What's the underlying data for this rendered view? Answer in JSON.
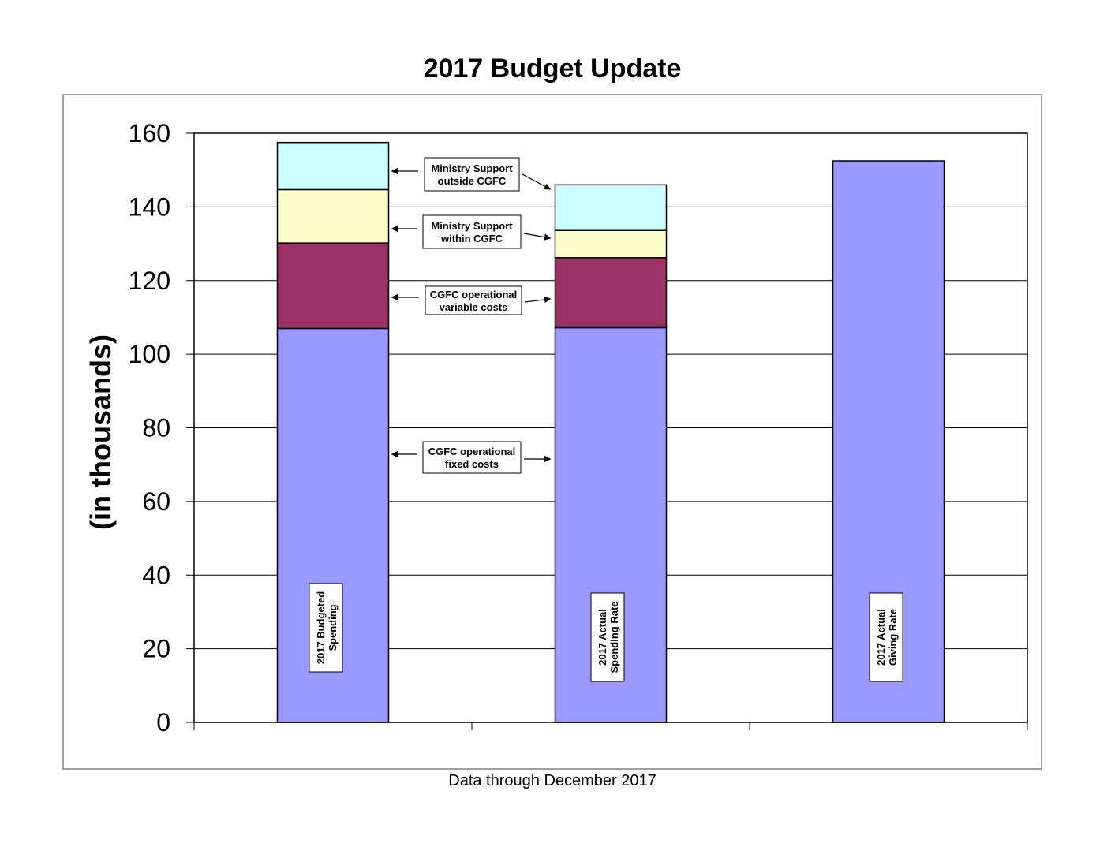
{
  "chart_data": {
    "type": "bar",
    "stacked": true,
    "title": "2017 Budget Update",
    "ylabel": "(in thousands)",
    "footer": "Data through December 2017",
    "ylim": [
      0,
      160
    ],
    "yticks": [
      0,
      20,
      40,
      60,
      80,
      100,
      120,
      140,
      160
    ],
    "grid": true,
    "categories": [
      [
        "2017  Budgeted",
        "Spending"
      ],
      [
        "2017 Actual",
        "Spending Rate"
      ],
      [
        "2017 Actual",
        "Giving Rate"
      ]
    ],
    "series": [
      {
        "name": "CGFC operational fixed costs",
        "color": "#9999ff",
        "values": [
          107,
          107.2,
          152.5
        ]
      },
      {
        "name": "CGFC operational variable costs",
        "color": "#993366",
        "values": [
          23.2,
          19,
          0
        ]
      },
      {
        "name": "Ministry Support within  CGFC",
        "color": "#ffffcc",
        "values": [
          14.5,
          7.4,
          0
        ]
      },
      {
        "name": "Ministry Support outside CGFC",
        "color": "#ccffff",
        "values": [
          12.8,
          12.4,
          0
        ]
      }
    ],
    "annotations": [
      {
        "lines": [
          "Ministry Support",
          "outside CGFC"
        ],
        "series": 3
      },
      {
        "lines": [
          "Ministry Support",
          "within  CGFC"
        ],
        "series": 2
      },
      {
        "lines": [
          "CGFC operational",
          "variable costs"
        ],
        "series": 1
      },
      {
        "lines": [
          "CGFC operational",
          "fixed costs"
        ],
        "series": 0
      }
    ]
  }
}
